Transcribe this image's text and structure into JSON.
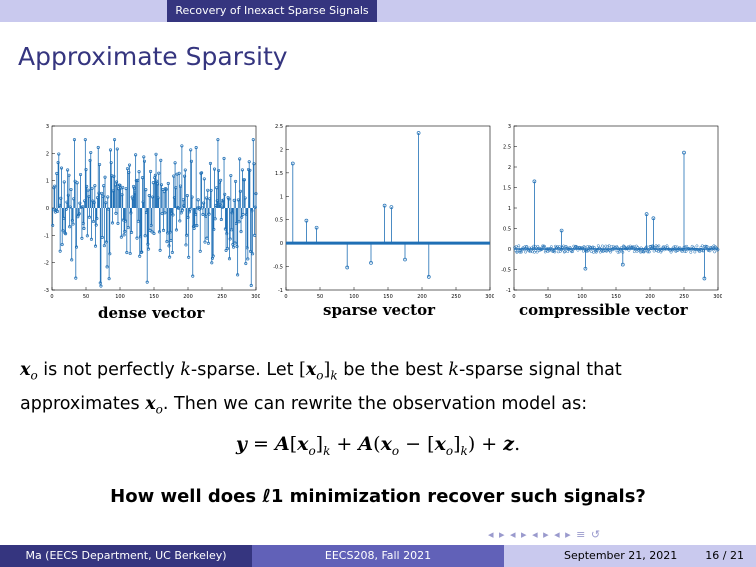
{
  "header": {
    "section": "Recovery of Inexact Sparse Signals"
  },
  "slide_title": "Approximate Sparsity",
  "chart_data": [
    {
      "type": "scatter",
      "title": "dense vector",
      "xlim": [
        0,
        300
      ],
      "ylim": [
        -3,
        3
      ],
      "xticks": [
        "0",
        "50",
        "100",
        "150",
        "200",
        "250",
        "300"
      ],
      "yticks": [
        "-3",
        "-2",
        "-1",
        "0",
        "1",
        "2",
        "3"
      ],
      "style": "stem",
      "n_points": 300,
      "values_description": "300 entries with values spread roughly in [-3, 2.5]"
    },
    {
      "type": "scatter",
      "title": "sparse vector",
      "xlim": [
        0,
        300
      ],
      "ylim": [
        -1,
        2.5
      ],
      "xticks": [
        "0",
        "50",
        "100",
        "150",
        "200",
        "250",
        "300"
      ],
      "yticks": [
        "-1",
        "-0.5",
        "0",
        "0.5",
        "1",
        "1.5",
        "2",
        "2.5"
      ],
      "style": "stem",
      "x": [
        10,
        30,
        45,
        90,
        125,
        145,
        155,
        175,
        195,
        210
      ],
      "y": [
        1.7,
        0.48,
        0.33,
        -0.52,
        -0.42,
        0.8,
        0.77,
        -0.35,
        2.35,
        -0.72
      ]
    },
    {
      "type": "scatter",
      "title": "compressible vector",
      "xlim": [
        0,
        300
      ],
      "ylim": [
        -1,
        3
      ],
      "xticks": [
        "0",
        "50",
        "100",
        "150",
        "200",
        "250",
        "300"
      ],
      "yticks": [
        "-1",
        "-0.5",
        "0",
        "0.5",
        "1",
        "1.5",
        "2",
        "2.5",
        "3"
      ],
      "style": "stem",
      "x": [
        30,
        70,
        105,
        160,
        195,
        205,
        250,
        280
      ],
      "y": [
        1.65,
        0.45,
        -0.48,
        -0.38,
        0.85,
        0.75,
        2.35,
        -0.72
      ]
    }
  ],
  "body": {
    "line1_a": "is not perfectly",
    "line1_b": "-sparse. Let",
    "line1_c": "be the best",
    "line1_d": "-sparse signal that",
    "line2_a": "approximates",
    "line2_b": ". Then we can rewrite the observation model as:",
    "question": "How well does ℓ1 minimization recover such signals?"
  },
  "footer": {
    "author": "Ma (EECS Department, UC Berkeley)",
    "course": "EECS208, Fall 2021",
    "date": "September 21, 2021",
    "page": "16 / 21"
  },
  "nav_symbols": "◂ ▸ ◂ ▸ ◂ ▸ ◂ ▸ ≡ ↺"
}
